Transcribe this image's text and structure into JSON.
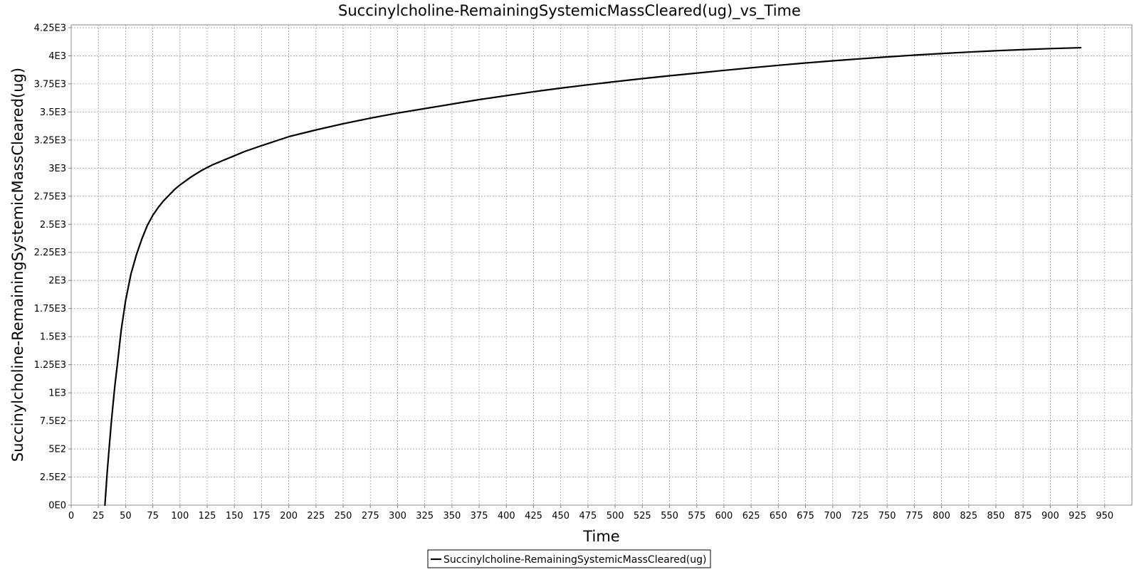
{
  "chart_data": {
    "type": "line",
    "title": "Succinylcholine-RemainingSystemicMassCleared(ug)_vs_Time",
    "xlabel": "Time",
    "ylabel": "Succinylcholine-RemainingSystemicMassCleared(ug)",
    "xlim": [
      0,
      975
    ],
    "ylim": [
      0,
      4275
    ],
    "grid": true,
    "legend_position": "bottom-center",
    "x_ticks": [
      0,
      25,
      50,
      75,
      100,
      125,
      150,
      175,
      200,
      225,
      250,
      275,
      300,
      325,
      350,
      375,
      400,
      425,
      450,
      475,
      500,
      525,
      550,
      575,
      600,
      625,
      650,
      675,
      700,
      725,
      750,
      775,
      800,
      825,
      850,
      875,
      900,
      925,
      950
    ],
    "x_tick_labels": [
      "0",
      "25",
      "50",
      "75",
      "100",
      "125",
      "150",
      "175",
      "200",
      "225",
      "250",
      "275",
      "300",
      "325",
      "350",
      "375",
      "400",
      "425",
      "450",
      "475",
      "500",
      "525",
      "550",
      "575",
      "600",
      "625",
      "650",
      "675",
      "700",
      "725",
      "750",
      "775",
      "800",
      "825",
      "850",
      "875",
      "900",
      "925",
      "950"
    ],
    "y_ticks": [
      0,
      250,
      500,
      750,
      1000,
      1250,
      1500,
      1750,
      2000,
      2250,
      2500,
      2750,
      3000,
      3250,
      3500,
      3750,
      4000,
      4250
    ],
    "y_tick_labels": [
      "0E0",
      "2.5E2",
      "5E2",
      "7.5E2",
      "1E3",
      "1.25E3",
      "1.5E3",
      "1.75E3",
      "2E3",
      "2.25E3",
      "2.5E3",
      "2.75E3",
      "3E3",
      "3.25E3",
      "3.5E3",
      "3.75E3",
      "4E3",
      "4.25E3"
    ],
    "series": [
      {
        "name": "Succinylcholine-RemainingSystemicMassCleared(ug)",
        "color": "#000000",
        "x": [
          31,
          33,
          35,
          37,
          40,
          43,
          46,
          50,
          55,
          60,
          65,
          70,
          75,
          80,
          85,
          90,
          95,
          100,
          110,
          120,
          130,
          140,
          150,
          160,
          175,
          200,
          225,
          250,
          275,
          300,
          325,
          350,
          375,
          400,
          425,
          450,
          475,
          500,
          525,
          550,
          575,
          600,
          625,
          650,
          675,
          700,
          725,
          750,
          775,
          800,
          825,
          850,
          875,
          900,
          928
        ],
        "y": [
          0,
          280,
          520,
          750,
          1050,
          1300,
          1560,
          1820,
          2060,
          2230,
          2370,
          2490,
          2580,
          2650,
          2710,
          2760,
          2810,
          2850,
          2920,
          2980,
          3030,
          3070,
          3110,
          3150,
          3200,
          3280,
          3340,
          3395,
          3445,
          3490,
          3530,
          3570,
          3610,
          3645,
          3680,
          3712,
          3742,
          3770,
          3797,
          3822,
          3846,
          3870,
          3893,
          3915,
          3936,
          3955,
          3973,
          3990,
          4006,
          4020,
          4033,
          4045,
          4055,
          4064,
          4072
        ]
      }
    ]
  }
}
